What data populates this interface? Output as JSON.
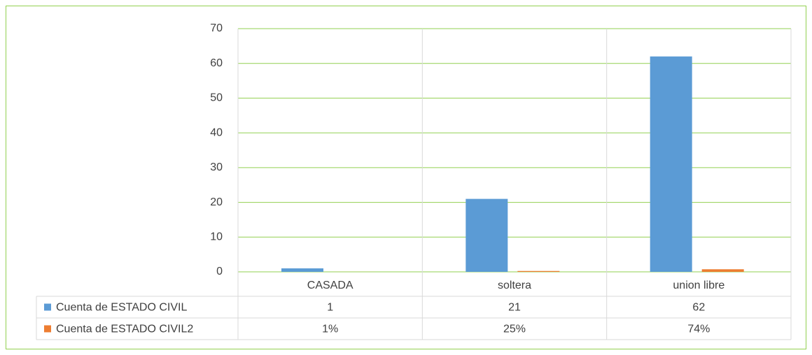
{
  "chart_data": {
    "type": "bar",
    "categories": [
      "CASADA",
      "soltera",
      "union libre"
    ],
    "series": [
      {
        "name": "Cuenta de ESTADO CIVIL",
        "color": "#5b9bd5",
        "values": [
          1,
          21,
          62
        ]
      },
      {
        "name": "Cuenta de ESTADO CIVIL2",
        "color": "#ed7d31",
        "values": [
          0.01,
          0.25,
          0.74
        ],
        "value_labels": [
          "1%",
          "25%",
          "74%"
        ]
      }
    ],
    "ylim": [
      0,
      70
    ],
    "yticks": [
      0,
      10,
      20,
      30,
      40,
      50,
      60,
      70
    ],
    "grid": true,
    "grid_color": "#92d050"
  }
}
